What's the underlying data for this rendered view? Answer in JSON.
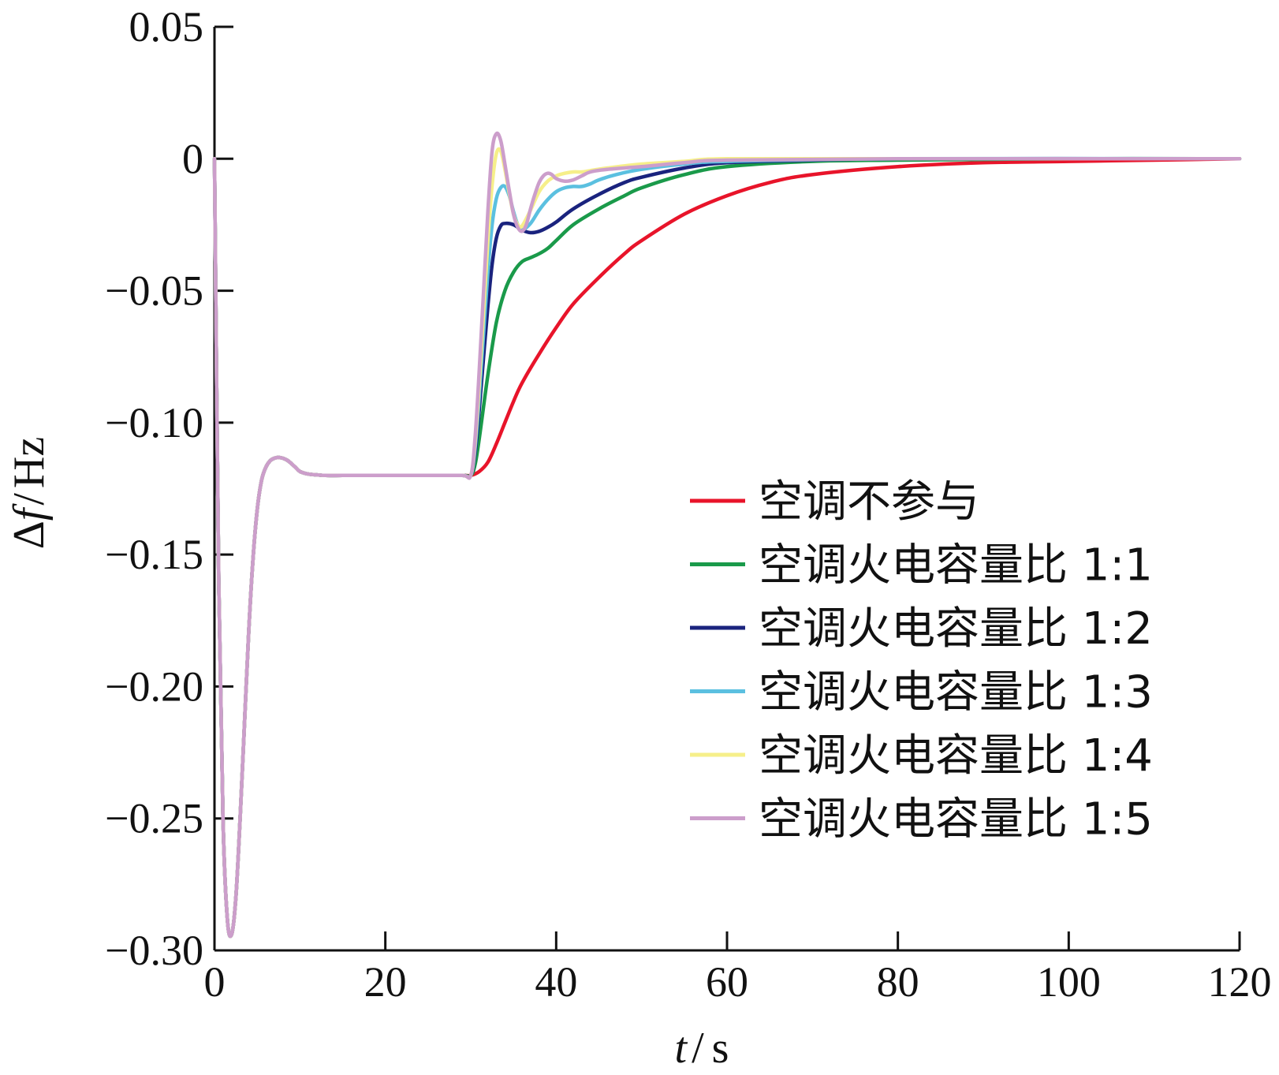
{
  "chart_data": {
    "type": "line",
    "xlabel": {
      "var": "t",
      "sep": "/",
      "unit": "s"
    },
    "ylabel": {
      "prefix": "Δ",
      "var": "f",
      "sep": "/",
      "unit": "Hz"
    },
    "xlim": [
      0,
      120
    ],
    "ylim": [
      -0.3,
      0.05
    ],
    "x_ticks": [
      0,
      20,
      40,
      60,
      80,
      100,
      120
    ],
    "x_tick_labels": [
      "0",
      "20",
      "40",
      "60",
      "80",
      "100",
      "120"
    ],
    "y_ticks": [
      0.05,
      0,
      -0.05,
      -0.1,
      -0.15,
      -0.2,
      -0.25,
      -0.3
    ],
    "y_tick_labels": [
      "0.05",
      "0",
      "−0.05",
      "−0.10",
      "−0.15",
      "−0.20",
      "−0.25",
      "−0.30"
    ],
    "grid": false,
    "legend_position": "bottom-right",
    "common_prefix": {
      "x": [
        0,
        0.5,
        1.0,
        1.5,
        2.0,
        2.5,
        3.0,
        3.5,
        4.0,
        4.5,
        5.0,
        5.5,
        6.0,
        6.5,
        7.0,
        7.5,
        8.0,
        8.5,
        9.0,
        9.5,
        10.0,
        11.0,
        12.0,
        13.0,
        15.0,
        20.0,
        25.0,
        29.0,
        30.0
      ],
      "y": [
        0.0,
        -0.16,
        -0.25,
        -0.288,
        -0.294,
        -0.28,
        -0.25,
        -0.215,
        -0.18,
        -0.152,
        -0.133,
        -0.122,
        -0.117,
        -0.1145,
        -0.1135,
        -0.1132,
        -0.1135,
        -0.1142,
        -0.1155,
        -0.117,
        -0.1185,
        -0.1195,
        -0.1198,
        -0.12,
        -0.12,
        -0.12,
        -0.12,
        -0.12,
        -0.12
      ]
    },
    "series": [
      {
        "name": "空调不参与",
        "color": "#e8142a",
        "x": [
          30,
          31,
          32,
          33,
          34,
          35,
          36,
          38,
          40,
          42,
          45,
          48,
          50,
          55,
          60,
          65,
          70,
          80,
          90,
          100,
          110,
          120
        ],
        "y": [
          -0.12,
          -0.1185,
          -0.115,
          -0.108,
          -0.1,
          -0.092,
          -0.085,
          -0.074,
          -0.064,
          -0.055,
          -0.045,
          -0.036,
          -0.031,
          -0.021,
          -0.014,
          -0.009,
          -0.006,
          -0.003,
          -0.0015,
          -0.001,
          -0.0005,
          0.0
        ]
      },
      {
        "name": "空调火电容量比 1:1",
        "color": "#1a9a4a",
        "x": [
          30,
          30.5,
          31,
          32,
          33,
          34,
          35,
          36,
          37,
          38,
          39,
          40,
          42,
          45,
          48,
          50,
          55,
          60,
          70,
          80,
          100,
          120
        ],
        "y": [
          -0.12,
          -0.116,
          -0.106,
          -0.082,
          -0.062,
          -0.05,
          -0.043,
          -0.039,
          -0.0375,
          -0.036,
          -0.034,
          -0.031,
          -0.025,
          -0.019,
          -0.014,
          -0.011,
          -0.006,
          -0.003,
          -0.001,
          -0.0005,
          0.0,
          0.0
        ]
      },
      {
        "name": "空调火电容量比 1:2",
        "color": "#1a237e",
        "x": [
          30,
          30.5,
          31,
          31.5,
          32,
          32.5,
          33,
          33.5,
          34,
          35,
          36,
          37,
          38,
          39,
          40,
          42,
          45,
          48,
          50,
          55,
          60,
          70,
          80,
          100,
          120
        ],
        "y": [
          -0.12,
          -0.112,
          -0.095,
          -0.075,
          -0.056,
          -0.04,
          -0.03,
          -0.0255,
          -0.0245,
          -0.025,
          -0.027,
          -0.028,
          -0.0275,
          -0.026,
          -0.024,
          -0.019,
          -0.0135,
          -0.009,
          -0.007,
          -0.0035,
          -0.0015,
          -0.0005,
          0.0,
          0.0,
          0.0
        ]
      },
      {
        "name": "空调火电容量比 1:3",
        "color": "#5bc0e0",
        "x": [
          30,
          30.5,
          31,
          31.5,
          32,
          32.5,
          33,
          33.5,
          34,
          34.5,
          35,
          35.5,
          36,
          37,
          38,
          39,
          40,
          41,
          42,
          43,
          44,
          45,
          47,
          50,
          55,
          60,
          80,
          120
        ],
        "y": [
          -0.12,
          -0.11,
          -0.09,
          -0.066,
          -0.043,
          -0.025,
          -0.015,
          -0.011,
          -0.0105,
          -0.014,
          -0.02,
          -0.025,
          -0.027,
          -0.0245,
          -0.0195,
          -0.0155,
          -0.0125,
          -0.011,
          -0.0105,
          -0.0105,
          -0.0095,
          -0.008,
          -0.006,
          -0.004,
          -0.002,
          -0.001,
          0.0,
          0.0
        ]
      },
      {
        "name": "空调火电容量比 1:4",
        "color": "#f6ef8a",
        "x": [
          30,
          30.5,
          31,
          31.5,
          32,
          32.5,
          33,
          33.5,
          34,
          34.5,
          35,
          35.5,
          36,
          37,
          38,
          39,
          40,
          41,
          42,
          43,
          44,
          46,
          50,
          55,
          60,
          80,
          120
        ],
        "y": [
          -0.12,
          -0.108,
          -0.085,
          -0.058,
          -0.031,
          -0.01,
          0.002,
          0.003,
          -0.004,
          -0.013,
          -0.021,
          -0.025,
          -0.0255,
          -0.0195,
          -0.0125,
          -0.0085,
          -0.0065,
          -0.0055,
          -0.005,
          -0.005,
          -0.0045,
          -0.0035,
          -0.002,
          -0.001,
          0.0,
          0.0,
          0.0
        ]
      },
      {
        "name": "空调火电容量比 1:5",
        "color": "#cc9ecb",
        "x": [
          30,
          30.5,
          31,
          31.5,
          32,
          32.5,
          33,
          33.5,
          34,
          34.5,
          35,
          35.5,
          36,
          36.5,
          37,
          37.5,
          38,
          38.5,
          39,
          39.5,
          40,
          41,
          42,
          43,
          44,
          46,
          50,
          55,
          60,
          80,
          120
        ],
        "y": [
          -0.12,
          -0.106,
          -0.08,
          -0.05,
          -0.02,
          0.003,
          0.0095,
          0.007,
          -0.002,
          -0.012,
          -0.021,
          -0.026,
          -0.0275,
          -0.025,
          -0.019,
          -0.0135,
          -0.009,
          -0.0065,
          -0.0055,
          -0.006,
          -0.0075,
          -0.0085,
          -0.008,
          -0.0065,
          -0.005,
          -0.004,
          -0.003,
          -0.0015,
          -0.0005,
          0.0,
          0.0
        ]
      }
    ]
  }
}
